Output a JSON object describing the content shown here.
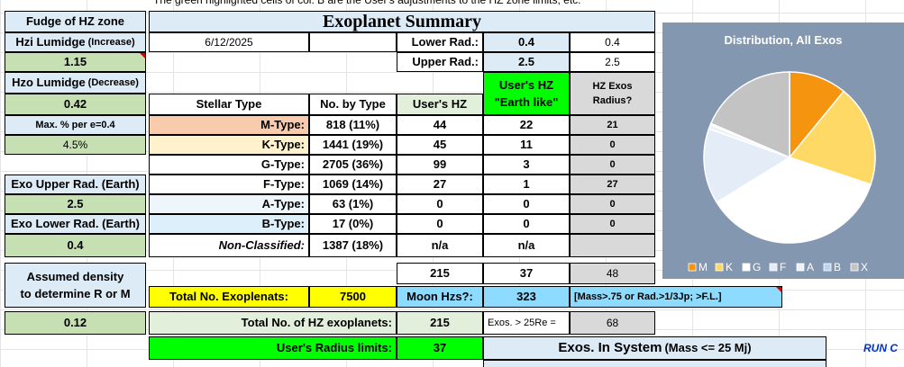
{
  "note": "The green highlighted cells of col. B are the User's adjustments to the HZ zone limits, etc.",
  "title": "Exoplanet Summary",
  "date": "6/12/2025",
  "sidebar": [
    "Fudge of HZ zone",
    {
      "text": "Hzi Lumidge",
      "hint": "(Increase)"
    },
    1.15,
    {
      "text": "Hzo Lumidge",
      "hint": "(Decrease)"
    },
    0.42,
    "Max. % per e=0.4",
    "4.5%",
    "Exo Upper Rad. (Earth)",
    2.5,
    "Exo Lower Rad. (Earth)",
    0.4,
    "Assumed density\nto determine R or M",
    0.12
  ],
  "radius": {
    "lower_label": "Lower Rad.:",
    "lower": 0.4,
    "lower_echo": 0.4,
    "upper_label": "Upper Rad.:",
    "upper": 2.5,
    "upper_echo": 2.5
  },
  "table": {
    "columns": [
      "Stellar Type",
      "No. by Type",
      "User's HZ",
      "User's HZ\n\"Earth like\"",
      "HZ Exos\nRadius?"
    ],
    "rows": [
      [
        "M-Type:",
        "818  (11%)",
        44,
        22,
        21
      ],
      [
        "K-Type:",
        "1441  (19%)",
        45,
        11,
        0
      ],
      [
        "G-Type:",
        "2705  (36%)",
        99,
        3,
        0
      ],
      [
        "F-Type:",
        "1069  (14%)",
        27,
        1,
        27
      ],
      [
        "A-Type:",
        "63  (1%)",
        0,
        0,
        0
      ],
      [
        "B-Type:",
        "17  (0%)",
        0,
        0,
        0
      ],
      [
        "Non-Classified:",
        "1387  (18%)",
        "n/a",
        "n/a"
      ]
    ]
  },
  "summary": {
    "sum_hz": 215,
    "sum_earth": 37,
    "sum_radius": 48,
    "total_label": "Total No. Exoplenats:",
    "total": 7500,
    "moon_label": "Moon Hzs?:",
    "moon": 323,
    "moon_note": "[Mass>.75 or Rad.>1/3Jp; >F.L.]",
    "hz_total_label": "Total No. of HZ exoplanets:",
    "hz_total": 215,
    "big_label": "Exos. > 25Re =",
    "big": 68,
    "radius_label": "User's Radius limits:",
    "radius_total": 37,
    "system_title": "Exos. In System",
    "system_hint": "(Mass <= 25 Mj)",
    "run": "RUN C"
  },
  "chart_data": {
    "type": "pie",
    "title": "Distribution, All Exos",
    "categories": [
      "M",
      "K",
      "G",
      "F",
      "A",
      "B",
      "X"
    ],
    "values": [
      818,
      1441,
      2705,
      1069,
      63,
      17,
      1387
    ],
    "colors": [
      "#f5950f",
      "#ffd966",
      "#ffffff",
      "#e4edf7",
      "#eef3f9",
      "#bcd4ee",
      "#c3c3c3"
    ],
    "background": "#8497b0",
    "legend": "bottom"
  }
}
